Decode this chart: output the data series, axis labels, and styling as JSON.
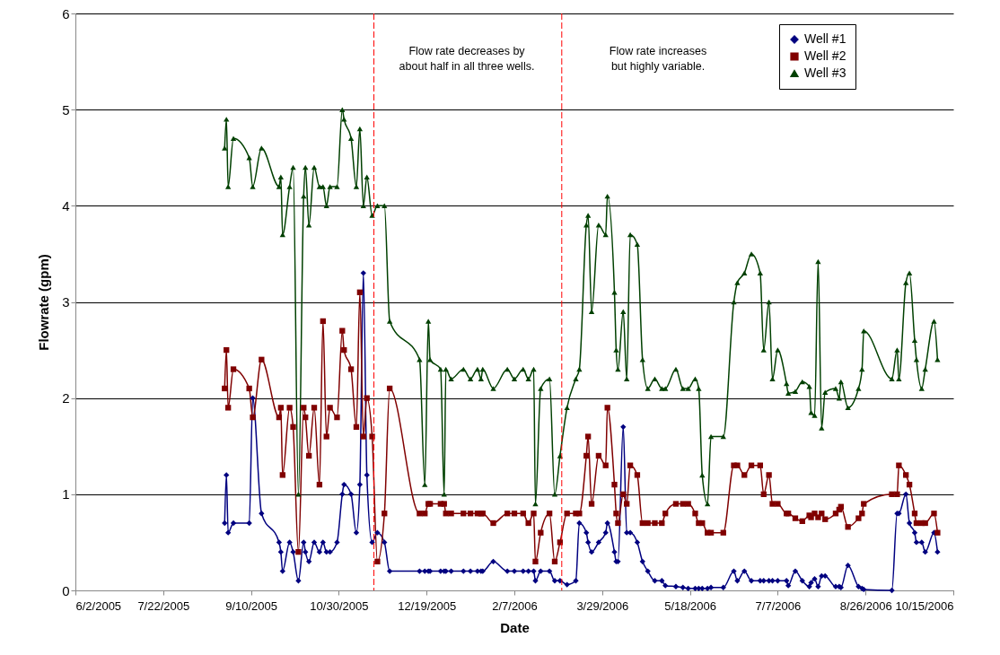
{
  "chart_data": {
    "type": "line",
    "xlabel": "Date",
    "ylabel": "Flowrate (gpm)",
    "x": [
      "2005-08-26",
      "2005-08-27",
      "2005-08-28",
      "2005-08-31",
      "2005-09-09",
      "2005-09-11",
      "2005-09-16",
      "2005-09-26",
      "2005-09-27",
      "2005-09-28",
      "2005-10-02",
      "2005-10-04",
      "2005-10-07",
      "2005-10-10",
      "2005-10-11",
      "2005-10-13",
      "2005-10-16",
      "2005-10-19",
      "2005-10-21",
      "2005-10-23",
      "2005-10-25",
      "2005-10-29",
      "2005-11-01",
      "2005-11-02",
      "2005-11-06",
      "2005-11-09",
      "2005-11-11",
      "2005-11-13",
      "2005-11-15",
      "2005-11-18",
      "2005-11-21",
      "2005-11-25",
      "2005-11-28",
      "2005-12-15",
      "2005-12-18",
      "2005-12-20",
      "2005-12-21",
      "2005-12-27",
      "2005-12-29",
      "2005-12-30",
      "2006-01-02",
      "2006-01-09",
      "2006-01-13",
      "2006-01-17",
      "2006-01-19",
      "2006-01-20",
      "2006-01-26",
      "2006-02-03",
      "2006-02-07",
      "2006-02-12",
      "2006-02-15",
      "2006-02-18",
      "2006-02-19",
      "2006-02-22",
      "2006-02-27",
      "2006-03-02",
      "2006-03-05",
      "2006-03-09",
      "2006-03-14",
      "2006-03-16",
      "2006-03-20",
      "2006-03-21",
      "2006-03-23",
      "2006-03-27",
      "2006-03-31",
      "2006-04-01",
      "2006-04-05",
      "2006-04-06",
      "2006-04-07",
      "2006-04-10",
      "2006-04-12",
      "2006-04-14",
      "2006-04-18",
      "2006-04-21",
      "2006-04-24",
      "2006-04-28",
      "2006-05-02",
      "2006-05-04",
      "2006-05-10",
      "2006-05-14",
      "2006-05-17",
      "2006-05-21",
      "2006-05-23",
      "2006-05-25",
      "2006-05-28",
      "2006-05-30",
      "2006-06-06",
      "2006-06-12",
      "2006-06-14",
      "2006-06-18",
      "2006-06-22",
      "2006-06-27",
      "2006-06-29",
      "2006-07-02",
      "2006-07-04",
      "2006-07-07",
      "2006-07-12",
      "2006-07-13",
      "2006-07-17",
      "2006-07-21",
      "2006-07-25",
      "2006-07-26",
      "2006-07-28",
      "2006-07-30",
      "2006-08-01",
      "2006-08-03",
      "2006-08-09",
      "2006-08-11",
      "2006-08-12",
      "2006-08-16",
      "2006-08-22",
      "2006-08-24",
      "2006-08-25",
      "2006-09-10",
      "2006-09-13",
      "2006-09-14",
      "2006-09-18",
      "2006-09-20",
      "2006-09-23",
      "2006-09-24",
      "2006-09-27",
      "2006-09-29",
      "2006-10-04",
      "2006-10-06"
    ],
    "series": [
      {
        "name": "Well #1",
        "color": "#000080",
        "marker": "diamond",
        "values": [
          0.7,
          1.2,
          0.6,
          0.7,
          0.7,
          2.0,
          0.8,
          0.5,
          0.4,
          0.2,
          0.5,
          0.4,
          0.1,
          0.5,
          0.4,
          0.3,
          0.5,
          0.4,
          0.5,
          0.4,
          0.4,
          0.5,
          1.0,
          1.1,
          1.0,
          0.6,
          1.1,
          3.3,
          1.2,
          0.5,
          0.6,
          0.5,
          0.2,
          0.2,
          0.2,
          0.2,
          0.2,
          0.2,
          0.2,
          0.2,
          0.2,
          0.2,
          0.2,
          0.2,
          0.2,
          0.2,
          0.3,
          0.2,
          0.2,
          0.2,
          0.2,
          0.2,
          0.1,
          0.2,
          0.2,
          0.1,
          0.1,
          0.06,
          0.1,
          0.7,
          0.6,
          0.5,
          0.4,
          0.5,
          0.6,
          0.7,
          0.4,
          0.3,
          0.3,
          1.7,
          0.6,
          0.6,
          0.5,
          0.3,
          0.2,
          0.1,
          0.1,
          0.05,
          0.04,
          0.03,
          0.02,
          0.02,
          0.02,
          0.02,
          0.02,
          0.03,
          0.03,
          0.2,
          0.1,
          0.2,
          0.1,
          0.1,
          0.1,
          0.1,
          0.1,
          0.1,
          0.1,
          0.05,
          0.2,
          0.1,
          0.04,
          0.08,
          0.12,
          0.04,
          0.15,
          0.15,
          0.04,
          0.04,
          0.03,
          0.26,
          0.04,
          0.02,
          0.01,
          0,
          0.8,
          0.8,
          1.0,
          0.7,
          0.6,
          0.5,
          0.5,
          0.4,
          0.6,
          0.4
        ]
      },
      {
        "name": "Well #2",
        "color": "#800000",
        "marker": "square",
        "values": [
          2.1,
          2.5,
          1.9,
          2.3,
          2.1,
          1.8,
          2.4,
          1.8,
          1.9,
          1.2,
          1.9,
          1.7,
          0.4,
          1.9,
          1.8,
          1.4,
          1.9,
          1.1,
          2.8,
          1.6,
          1.9,
          1.8,
          2.7,
          2.5,
          2.3,
          1.7,
          3.1,
          1.6,
          2.0,
          1.6,
          0.3,
          0.8,
          2.1,
          0.8,
          0.8,
          0.9,
          0.9,
          0.9,
          0.9,
          0.8,
          0.8,
          0.8,
          0.8,
          0.8,
          0.8,
          0.8,
          0.7,
          0.8,
          0.8,
          0.8,
          0.7,
          0.8,
          0.3,
          0.6,
          0.8,
          0.3,
          0.5,
          0.8,
          0.8,
          0.8,
          1.4,
          1.6,
          0.9,
          1.4,
          1.3,
          1.9,
          1.1,
          0.8,
          0.7,
          1.0,
          0.9,
          1.3,
          1.2,
          0.7,
          0.7,
          0.7,
          0.7,
          0.8,
          0.9,
          0.9,
          0.9,
          0.8,
          0.7,
          0.7,
          0.6,
          0.6,
          0.6,
          1.3,
          1.3,
          1.2,
          1.3,
          1.3,
          1.0,
          1.2,
          0.9,
          0.9,
          0.8,
          0.8,
          0.75,
          0.72,
          0.78,
          0.76,
          0.8,
          0.76,
          0.8,
          0.74,
          0.8,
          0.84,
          0.87,
          0.66,
          0.75,
          0.8,
          0.9,
          1.0,
          1.0,
          1.3,
          1.2,
          1.1,
          0.8,
          0.7,
          0.7,
          0.7,
          0.8,
          0.6
        ]
      },
      {
        "name": "Well #3",
        "color": "#004000",
        "marker": "triangle",
        "values": [
          4.6,
          4.9,
          4.2,
          4.7,
          4.5,
          4.2,
          4.6,
          4.2,
          4.3,
          3.7,
          4.2,
          4.4,
          1.0,
          4.1,
          4.4,
          3.8,
          4.4,
          4.2,
          4.2,
          4.0,
          4.2,
          4.2,
          5.0,
          4.9,
          4.7,
          4.2,
          4.8,
          4.0,
          4.3,
          3.9,
          4.0,
          4.0,
          2.8,
          2.4,
          1.1,
          2.8,
          2.4,
          2.3,
          1.0,
          2.3,
          2.2,
          2.3,
          2.2,
          2.3,
          2.2,
          2.3,
          2.1,
          2.3,
          2.2,
          2.3,
          2.2,
          2.3,
          0.9,
          2.1,
          2.2,
          1.0,
          1.4,
          1.9,
          2.2,
          2.3,
          3.8,
          3.9,
          2.9,
          3.8,
          3.7,
          4.1,
          3.1,
          2.5,
          2.3,
          2.9,
          2.2,
          3.7,
          3.6,
          2.4,
          2.1,
          2.2,
          2.1,
          2.1,
          2.3,
          2.1,
          2.1,
          2.2,
          2.1,
          1.2,
          0.9,
          1.6,
          1.6,
          3.0,
          3.2,
          3.3,
          3.5,
          3.3,
          2.5,
          3.0,
          2.2,
          2.5,
          2.15,
          2.05,
          2.07,
          2.17,
          2.12,
          1.85,
          1.82,
          3.42,
          1.69,
          2.06,
          2.1,
          2.0,
          2.17,
          1.9,
          2.1,
          2.3,
          2.7,
          2.2,
          2.5,
          2.2,
          3.2,
          3.3,
          2.6,
          2.4,
          2.1,
          2.3,
          2.8,
          2.4
        ]
      }
    ],
    "xlim": [
      "2005-06-02",
      "2006-10-15"
    ],
    "xticks": [
      {
        "value": "2005-06-02",
        "label": "6/2/2005"
      },
      {
        "value": "2005-07-22",
        "label": "7/22/2005"
      },
      {
        "value": "2005-09-10",
        "label": "9/10/2005"
      },
      {
        "value": "2005-10-30",
        "label": "10/30/2005"
      },
      {
        "value": "2005-12-19",
        "label": "12/19/2005"
      },
      {
        "value": "2006-02-07",
        "label": "2/7/2006"
      },
      {
        "value": "2006-03-29",
        "label": "3/29/2006"
      },
      {
        "value": "2006-05-18",
        "label": "5/18/2006"
      },
      {
        "value": "2006-07-07",
        "label": "7/7/2006"
      },
      {
        "value": "2006-08-26",
        "label": "8/26/2006"
      },
      {
        "value": "2006-10-15",
        "label": "10/15/2006"
      }
    ],
    "ylim": [
      0,
      6
    ],
    "yticks": [
      0,
      1,
      2,
      3,
      4,
      5,
      6
    ],
    "grid": "y",
    "legend": "top right",
    "ref_lines": [
      {
        "axis": "x",
        "value": "2005-11-19",
        "color": "#ff0000",
        "line_style": "dashed"
      },
      {
        "axis": "x",
        "value": "2006-03-06",
        "color": "#ff0000",
        "line_style": "dashed"
      }
    ],
    "annotations": [
      "Flow rate decreases by\nabout half in all three wells.",
      "Flow rate increases\nbut highly variable."
    ]
  }
}
